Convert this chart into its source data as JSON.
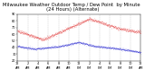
{
  "title": "Milwaukee Weather Outdoor Temp / Dew Point  by Minute  (24 Hours) (Alternate)",
  "title_fontsize": 3.8,
  "bg_color": "#ffffff",
  "plot_bg_color": "#ffffff",
  "temp_color": "#dd0000",
  "dew_color": "#0000cc",
  "grid_color": "#999999",
  "ylim": [
    20,
    90
  ],
  "xlim": [
    0,
    1440
  ],
  "tick_fontsize": 2.5,
  "yticks": [
    20,
    30,
    40,
    50,
    60,
    70,
    80,
    90
  ],
  "xtick_positions": [
    0,
    120,
    240,
    360,
    480,
    600,
    720,
    840,
    960,
    1080,
    1200,
    1320,
    1440
  ],
  "xtick_labels": [
    "12\nAM",
    "2\nAM",
    "4\nAM",
    "6\nAM",
    "8\nAM",
    "10\nAM",
    "12\nPM",
    "2\nPM",
    "4\nPM",
    "6\nPM",
    "8\nPM",
    "10\nPM",
    "12\nAM"
  ]
}
